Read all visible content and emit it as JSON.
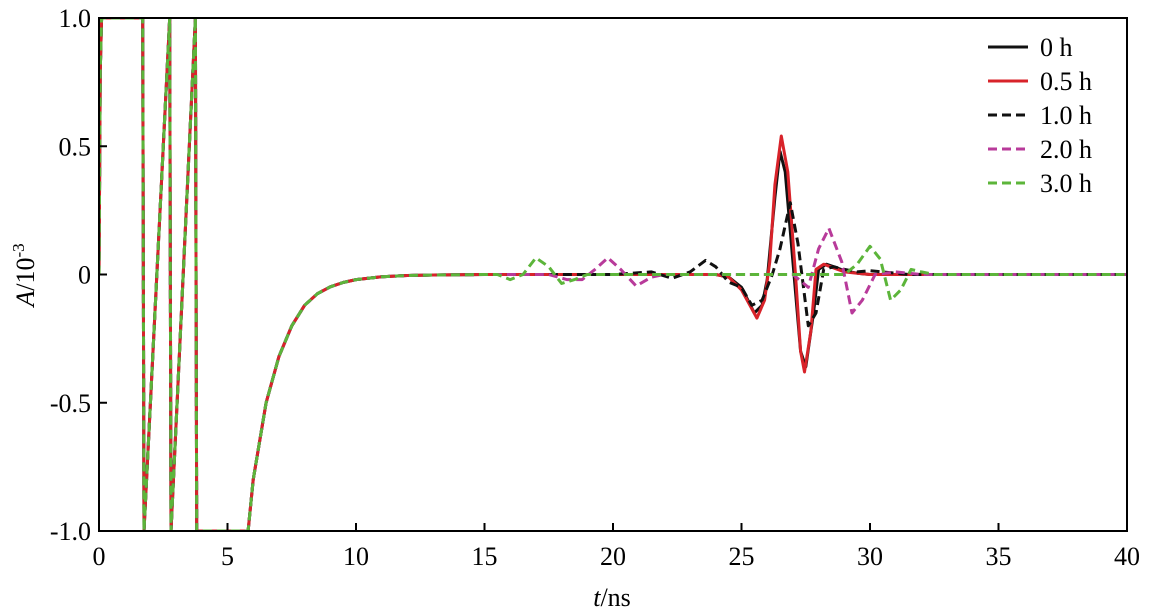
{
  "chart_data": {
    "type": "line",
    "title": "",
    "xlabel": {
      "italic": "t",
      "unit": "/ns"
    },
    "ylabel": {
      "italic": "A",
      "unit": "/10",
      "exponent": "-3"
    },
    "xlim": [
      0,
      40
    ],
    "ylim": [
      -1.0,
      1.0
    ],
    "xticks": [
      0,
      5,
      10,
      15,
      20,
      25,
      30,
      35,
      40
    ],
    "xtick_labels": [
      "0",
      "5",
      "10",
      "15",
      "20",
      "25",
      "30",
      "35",
      "40"
    ],
    "yticks": [
      1.0,
      0.5,
      0,
      -0.5,
      -1.0
    ],
    "ytick_labels": [
      "1.0",
      "0.5",
      "0",
      "-0.5",
      "-1.0"
    ],
    "grid": false,
    "legend_position": "top-right",
    "series": [
      {
        "name": "0 h",
        "color": "#111111",
        "dash": "solid",
        "x": [
          0,
          0.05,
          0.1,
          0.15,
          0.2,
          0.3,
          1.7,
          1.75,
          2.75,
          2.8,
          3.75,
          3.8,
          5.8,
          6.0,
          6.5,
          7.0,
          7.5,
          8.0,
          8.5,
          9.0,
          9.5,
          10.0,
          11.0,
          12.0,
          13.0,
          15.0,
          20.0,
          22.0,
          23.0,
          24.0,
          24.5,
          25.0,
          25.5,
          25.8,
          26.0,
          26.3,
          26.5,
          26.7,
          27.0,
          27.3,
          27.5,
          27.8,
          28.0,
          28.3,
          28.6,
          29.0,
          29.5,
          30.0,
          31.0,
          32.0,
          35.0,
          40.0
        ],
        "y": [
          0.0,
          0.8,
          1.0,
          1.0,
          1.0,
          1.0,
          1.0,
          -1.0,
          1.0,
          -1.0,
          1.0,
          -1.0,
          -1.0,
          -0.8,
          -0.5,
          -0.32,
          -0.2,
          -0.12,
          -0.075,
          -0.048,
          -0.031,
          -0.02,
          -0.009,
          -0.004,
          -0.002,
          0.0,
          0.0,
          0.0,
          0.0,
          0.0,
          -0.01,
          -0.05,
          -0.15,
          -0.12,
          -0.02,
          0.3,
          0.48,
          0.4,
          0.05,
          -0.3,
          -0.36,
          -0.15,
          0.02,
          0.04,
          0.03,
          0.015,
          0.005,
          0.0,
          0.0,
          0.0,
          0.0,
          0.0
        ]
      },
      {
        "name": "0.5 h",
        "color": "#d8232a",
        "dash": "solid",
        "x": [
          0,
          0.05,
          0.1,
          0.15,
          0.2,
          0.3,
          1.7,
          1.75,
          2.75,
          2.8,
          3.75,
          3.8,
          5.8,
          6.0,
          6.5,
          7.0,
          7.5,
          8.0,
          8.5,
          9.0,
          9.5,
          10.0,
          11.0,
          12.0,
          13.0,
          15.0,
          20.0,
          22.0,
          23.0,
          24.0,
          24.5,
          25.0,
          25.6,
          25.9,
          26.1,
          26.3,
          26.55,
          26.8,
          27.1,
          27.3,
          27.45,
          27.7,
          27.9,
          28.2,
          28.6,
          29.0,
          29.5,
          30.0,
          31.0,
          32.0,
          35.0,
          40.0
        ],
        "y": [
          0.0,
          0.8,
          1.0,
          1.0,
          1.0,
          1.0,
          1.0,
          -1.0,
          1.0,
          -1.0,
          1.0,
          -1.0,
          -1.0,
          -0.8,
          -0.5,
          -0.32,
          -0.2,
          -0.12,
          -0.075,
          -0.048,
          -0.031,
          -0.02,
          -0.009,
          -0.004,
          -0.002,
          0.0,
          0.0,
          0.0,
          0.0,
          0.0,
          -0.01,
          -0.06,
          -0.17,
          -0.1,
          0.05,
          0.35,
          0.54,
          0.4,
          0.0,
          -0.3,
          -0.38,
          -0.22,
          0.02,
          0.04,
          0.025,
          0.01,
          0.005,
          0.0,
          0.0,
          0.0,
          0.0,
          0.0
        ]
      },
      {
        "name": "1.0 h",
        "color": "#111111",
        "dash": "dashed",
        "x": [
          0,
          0.05,
          0.1,
          0.15,
          0.2,
          0.3,
          1.7,
          1.75,
          2.75,
          2.8,
          3.75,
          3.8,
          5.8,
          6.0,
          6.5,
          7.0,
          7.5,
          8.0,
          8.5,
          9.0,
          9.5,
          10.0,
          11.0,
          12.0,
          13.0,
          15.0,
          18.0,
          20.0,
          21.5,
          22.3,
          23.0,
          23.6,
          24.0,
          24.5,
          25.0,
          25.4,
          25.8,
          26.2,
          26.5,
          26.9,
          27.2,
          27.6,
          27.9,
          28.2,
          28.6,
          29.0,
          29.5,
          30.0,
          30.5,
          31.0,
          31.5,
          32.0,
          35.0,
          40.0
        ],
        "y": [
          0.0,
          0.8,
          1.0,
          1.0,
          1.0,
          1.0,
          1.0,
          -1.0,
          1.0,
          -1.0,
          1.0,
          -1.0,
          -1.0,
          -0.8,
          -0.5,
          -0.32,
          -0.2,
          -0.12,
          -0.075,
          -0.048,
          -0.031,
          -0.02,
          -0.009,
          -0.004,
          -0.002,
          0.0,
          0.0,
          0.0,
          0.01,
          -0.015,
          0.01,
          0.055,
          0.03,
          -0.03,
          -0.05,
          -0.12,
          -0.1,
          0.0,
          0.1,
          0.28,
          0.12,
          -0.2,
          -0.15,
          0.02,
          0.03,
          0.02,
          0.01,
          0.015,
          0.01,
          0.005,
          0.0,
          0.0,
          0.0,
          0.0
        ]
      },
      {
        "name": "2.0 h",
        "color": "#b83a9a",
        "dash": "dashed",
        "x": [
          0,
          0.05,
          0.1,
          0.15,
          0.2,
          0.3,
          1.7,
          1.75,
          2.75,
          2.8,
          3.75,
          3.8,
          5.8,
          6.0,
          6.5,
          7.0,
          7.5,
          8.0,
          8.5,
          9.0,
          9.5,
          10.0,
          11.0,
          12.0,
          13.0,
          15.0,
          17.5,
          18.2,
          18.8,
          19.3,
          19.8,
          20.3,
          20.9,
          21.5,
          22.0,
          25.5,
          26.0,
          27.0,
          27.6,
          28.0,
          28.4,
          28.9,
          29.3,
          29.7,
          30.2,
          31.0,
          32.0,
          35.0,
          40.0
        ],
        "y": [
          0.0,
          0.8,
          1.0,
          1.0,
          1.0,
          1.0,
          1.0,
          -1.0,
          1.0,
          -1.0,
          1.0,
          -1.0,
          -1.0,
          -0.8,
          -0.5,
          -0.32,
          -0.2,
          -0.12,
          -0.075,
          -0.048,
          -0.031,
          -0.02,
          -0.009,
          -0.004,
          -0.002,
          0.0,
          0.0,
          -0.02,
          -0.02,
          0.02,
          0.065,
          0.02,
          -0.045,
          -0.01,
          0.0,
          0.0,
          0.0,
          0.0,
          -0.05,
          0.1,
          0.18,
          0.05,
          -0.15,
          -0.1,
          0.0,
          0.01,
          0.0,
          0.0,
          0.0
        ]
      },
      {
        "name": "3.0 h",
        "color": "#5cb53a",
        "dash": "dashed",
        "x": [
          0,
          0.05,
          0.1,
          0.15,
          0.2,
          0.3,
          1.7,
          1.75,
          2.75,
          2.8,
          3.75,
          3.8,
          5.8,
          6.0,
          6.5,
          7.0,
          7.5,
          8.0,
          8.5,
          9.0,
          9.5,
          10.0,
          11.0,
          12.0,
          13.0,
          15.0,
          15.5,
          16.0,
          16.5,
          17.0,
          17.5,
          18.0,
          18.5,
          19.0,
          19.5,
          29.0,
          29.5,
          30.0,
          30.4,
          30.8,
          31.2,
          31.6,
          32.0,
          32.5,
          35.0,
          40.0
        ],
        "y": [
          0.0,
          0.8,
          1.0,
          1.0,
          1.0,
          1.0,
          1.0,
          -1.0,
          1.0,
          -1.0,
          1.0,
          -1.0,
          -1.0,
          -0.8,
          -0.5,
          -0.32,
          -0.2,
          -0.12,
          -0.075,
          -0.048,
          -0.031,
          -0.02,
          -0.009,
          -0.004,
          -0.002,
          0.0,
          0.0,
          -0.02,
          0.0,
          0.065,
          0.03,
          -0.035,
          -0.02,
          0.0,
          0.0,
          0.0,
          0.04,
          0.11,
          0.06,
          -0.1,
          -0.06,
          0.02,
          0.01,
          0.0,
          0.0,
          0.0
        ]
      }
    ]
  }
}
